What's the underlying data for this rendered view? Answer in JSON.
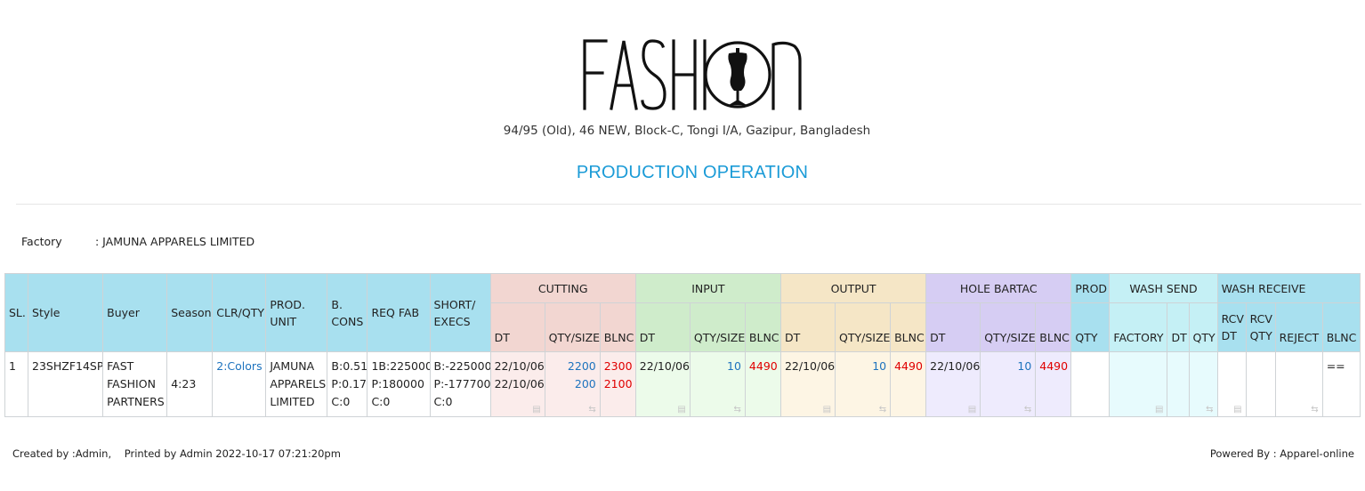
{
  "header": {
    "logo_text": "FASHION",
    "address": "94/95 (Old), 46 NEW, Block-C, Tongi I/A, Gazipur, Bangladesh",
    "title": "PRODUCTION OPERATION"
  },
  "factory": {
    "label": "Factory",
    "value": ": JAMUNA APPARELS LIMITED"
  },
  "table": {
    "headers": {
      "sl": "SL.",
      "style": "Style",
      "buyer": "Buyer",
      "season": "Season",
      "clr_qty": "CLR/QTY",
      "prod_unit": "PROD. UNIT",
      "b_cons": "B. CONS",
      "req_fab": "REQ FAB",
      "short_execs": "SHORT/ EXECS",
      "cutting": "CUTTING",
      "input": "INPUT",
      "output": "OUTPUT",
      "hole_bartac": "HOLE BARTAC",
      "prod": "PROD",
      "wash_send": "WASH SEND",
      "wash_receive": "WASH RECEIVE",
      "dt": "DT",
      "qty_size": "QTY/SIZE",
      "blnc": "BLNC",
      "qty": "QTY",
      "factory": "FACTORY",
      "rcv_dt": "RCV DT",
      "rcv_qty": "RCV QTY",
      "reject": "REJECT"
    },
    "rows": [
      {
        "sl": "1",
        "style": "23SHZF14SP",
        "buyer": [
          "FAST",
          "FASHION",
          "PARTNERS"
        ],
        "season": "4:23",
        "clr_qty": "2:Colors",
        "prod_unit": [
          "JAMUNA",
          "APPARELS",
          "LIMITED"
        ],
        "b_cons": [
          "B:0.51",
          "P:0.17",
          "C:0"
        ],
        "req_fab": [
          "1B:225000",
          "P:180000",
          "C:0"
        ],
        "short_execs": [
          "B:-225000",
          "P:-177700",
          "C:0"
        ],
        "cutting": {
          "dt": [
            "22/10/06",
            "22/10/06"
          ],
          "qty": [
            "2200",
            "200"
          ],
          "blnc": [
            "2300",
            "2100"
          ]
        },
        "input": {
          "dt": "22/10/06",
          "qty": "10",
          "blnc": "4490"
        },
        "output": {
          "dt": "22/10/06",
          "qty": "10",
          "blnc": "4490"
        },
        "hole_bartac": {
          "dt": "22/10/06",
          "qty": "10",
          "blnc": "4490"
        },
        "wash_receive_blnc": "=="
      }
    ]
  },
  "footer": {
    "created_by": "Created by :Admin,",
    "printed_by": "Printed by Admin 2022-10-17 07:21:20pm",
    "powered_by": "Powered By : Apparel-online"
  },
  "colors": {
    "title": "#1b9bd7",
    "header_cyan": "#a8e0ef",
    "cutting": "#f2d6d1",
    "input": "#cfeccb",
    "output": "#f5e6c6",
    "hole_bartac": "#d6cdf3",
    "wash": "#c5f0f5",
    "link_blue": "#1e73be",
    "balance_red": "#e00000"
  },
  "icons": [
    "document-icon",
    "transfer-icon"
  ]
}
